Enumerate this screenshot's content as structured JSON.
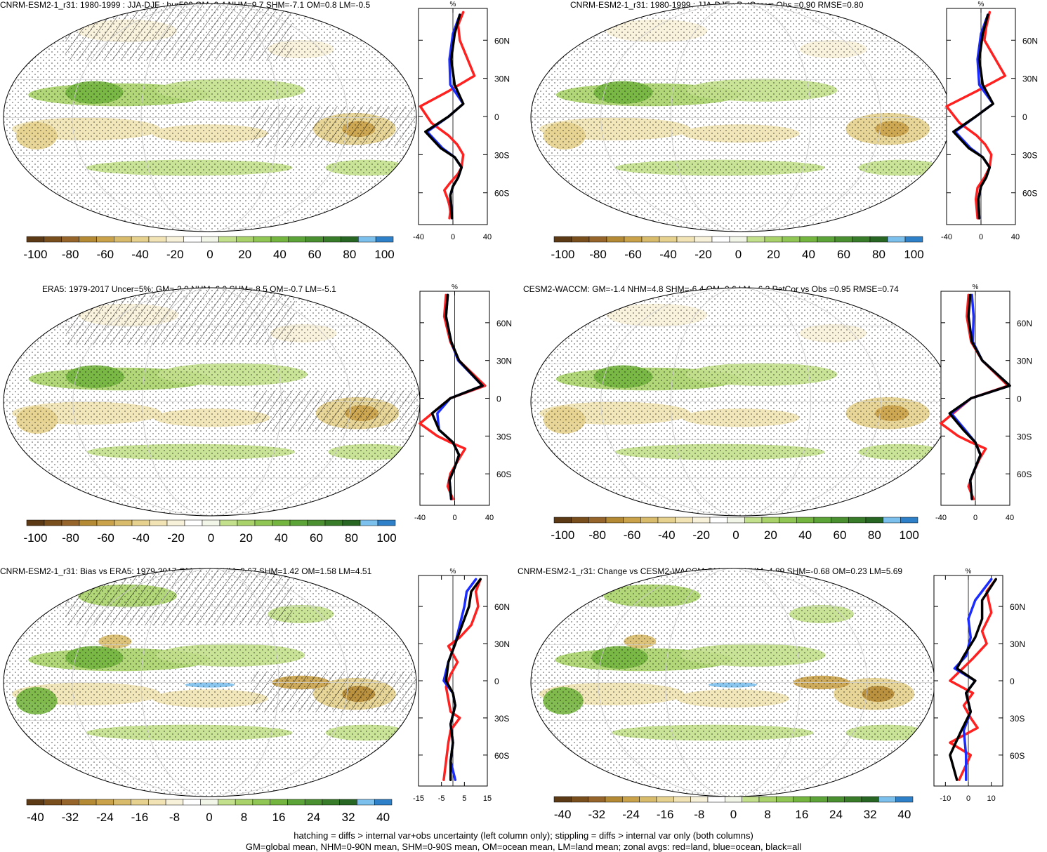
{
  "colorbar_colors": [
    "#5c3a16",
    "#7a4f1e",
    "#95652b",
    "#b58a34",
    "#caa24a",
    "#d9bb6c",
    "#e6d18e",
    "#f1e3b4",
    "#f8f1d9",
    "#ffffff",
    "#f2f6e8",
    "#c3e08c",
    "#a9d36a",
    "#8fc654",
    "#74b540",
    "#5da438",
    "#4a8f30",
    "#387b28",
    "#276723",
    "#7cc1ee",
    "#2e80c8"
  ],
  "line_colors": {
    "land": "#ff2020",
    "ocean": "#1a2cff",
    "all": "#000000"
  },
  "lat_labels": [
    "60N",
    "30N",
    "0",
    "30S",
    "60S"
  ],
  "lat_values": [
    60,
    30,
    0,
    -30,
    -60
  ],
  "panels": [
    {
      "title": "CNRM-ESM2-1_r31: 1980-1999 : JJA-DJF : hur500 GM=0.4 NHM=9.7 SHM=-7.1 OM=0.8 LM=-0.5",
      "colorbar_labels": [
        "-100",
        "-80",
        "-60",
        "-40",
        "-20",
        "0",
        "20",
        "40",
        "60",
        "80",
        "100"
      ],
      "unit": "%",
      "xticks": [
        "-40",
        "0",
        "40"
      ],
      "xlim": [
        -40,
        40
      ],
      "hatched": true
    },
    {
      "title": "CNRM-ESM2-1_r31: 1980-1999 : JJA-DJF : PatCor vs Obs =0.90 RMSE=0.80",
      "colorbar_labels": [
        "-100",
        "-80",
        "-60",
        "-40",
        "-20",
        "0",
        "20",
        "40",
        "60",
        "80",
        "100"
      ],
      "unit": "%",
      "xticks": [
        "-40",
        "0",
        "40"
      ],
      "xlim": [
        -40,
        40
      ],
      "hatched": false
    },
    {
      "title": "ERA5: 1979-2017 Uncer=5%: GM=-2.0 NHM=6.0 SHM=-8.5 OM=-0.7 LM=-5.1",
      "colorbar_labels": [
        "-100",
        "-80",
        "-60",
        "-40",
        "-20",
        "0",
        "20",
        "40",
        "60",
        "80",
        "100"
      ],
      "unit": "%",
      "xticks": [
        "-40",
        "0",
        "40"
      ],
      "xlim": [
        -40,
        40
      ],
      "hatched": true
    },
    {
      "title": "CESM2-WACCM: GM=-1.4 NHM=4.8 SHM=-6.4 OM=0.6 LM=-6.2 PatCor vs Obs =0.95 RMSE=0.74",
      "colorbar_labels": [
        "-100",
        "-80",
        "-60",
        "-40",
        "-20",
        "0",
        "20",
        "40",
        "60",
        "80",
        "100"
      ],
      "unit": "%",
      "xticks": [
        "-40",
        "0",
        "40"
      ],
      "xlim": [
        -40,
        40
      ],
      "hatched": false
    },
    {
      "title": "CNRM-ESM2-1_r31: Bias vs ERA5: 1979-2017 GM=2.43 NHM=3.67 SHM=1.42 OM=1.58 LM=4.51",
      "colorbar_labels": [
        "-40",
        "-32",
        "-24",
        "-16",
        "-8",
        "0",
        "8",
        "16",
        "24",
        "32",
        "40"
      ],
      "unit": "%",
      "xticks": [
        "-15",
        "-5",
        "5",
        "15"
      ],
      "xlim": [
        -15,
        15
      ],
      "hatched": true
    },
    {
      "title": "CNRM-ESM2-1_r31: Change vs CESM2-WACCM GM=1.81 NHM=4.89 SHM=-0.68 OM=0.23 LM=5.69",
      "colorbar_labels": [
        "-40",
        "-32",
        "-24",
        "-16",
        "-8",
        "0",
        "8",
        "16",
        "24",
        "32",
        "40"
      ],
      "unit": "%",
      "xticks": [
        "-10",
        "0",
        "10"
      ],
      "xlim": [
        -15,
        15
      ],
      "hatched": false
    }
  ],
  "footer": [
    "hatching = diffs > internal var+obs uncertainty (left column only); stippling = diffs > internal var only (both columns)",
    "GM=global mean, NHM=0-90N mean, SHM=0-90S mean, OM=ocean mean, LM=land mean; zonal avgs: red=land, blue=ocean, black=all"
  ],
  "chart_data": [
    {
      "type": "line",
      "title": "CNRM-ESM2-1_r31: 1980-1999 : JJA-DJF : hur500 GM=0.4 NHM=9.7 SHM=-7.1 OM=0.8 LM=-0.5",
      "xlabel": "%",
      "xlim": [
        -40,
        40
      ],
      "ylim": [
        -85,
        85
      ],
      "series": [
        {
          "name": "land",
          "x": [
            12,
            6,
            8,
            25,
            -5,
            -38,
            -25,
            -5,
            5,
            12,
            10,
            6,
            -3,
            -10,
            -6,
            -4,
            -3,
            -4
          ],
          "y": [
            82,
            72,
            60,
            32,
            20,
            8,
            -5,
            -15,
            -22,
            -30,
            -40,
            -45,
            -52,
            -58,
            -65,
            -70,
            -75,
            -80
          ]
        },
        {
          "name": "ocean",
          "x": [
            8,
            0,
            -4,
            -3,
            12,
            -5,
            -30,
            -12,
            2,
            10,
            6,
            0,
            -3,
            -2,
            -1
          ],
          "y": [
            80,
            65,
            45,
            25,
            10,
            0,
            -12,
            -25,
            -32,
            -40,
            -48,
            -55,
            -62,
            -70,
            -80
          ]
        },
        {
          "name": "all",
          "x": [
            8,
            2,
            -2,
            2,
            12,
            -5,
            -32,
            -14,
            2,
            10,
            6,
            0,
            -3,
            -2,
            -1
          ],
          "y": [
            80,
            65,
            45,
            25,
            10,
            0,
            -12,
            -25,
            -32,
            -40,
            -48,
            -55,
            -62,
            -70,
            -80
          ]
        }
      ]
    },
    {
      "type": "line",
      "title": "CNRM-ESM2-1_r31: 1980-1999 : JJA-DJF : PatCor vs Obs =0.90 RMSE=0.80",
      "xlabel": "%",
      "xlim": [
        -40,
        40
      ],
      "ylim": [
        -85,
        85
      ],
      "series": [
        {
          "name": "land",
          "x": [
            10,
            6,
            4,
            28,
            -5,
            -40,
            -25,
            -5,
            5,
            12,
            10,
            4,
            -4,
            -6,
            -4
          ],
          "y": [
            82,
            70,
            60,
            32,
            20,
            8,
            -5,
            -15,
            -22,
            -30,
            -40,
            -48,
            -56,
            -65,
            -80
          ]
        },
        {
          "name": "ocean",
          "x": [
            8,
            0,
            -4,
            -2,
            14,
            -6,
            -30,
            -12,
            2,
            10,
            6,
            0,
            -3,
            -2
          ],
          "y": [
            80,
            65,
            45,
            25,
            10,
            0,
            -12,
            -25,
            -32,
            -40,
            -48,
            -55,
            -65,
            -80
          ]
        },
        {
          "name": "all",
          "x": [
            8,
            2,
            -2,
            2,
            14,
            -6,
            -32,
            -14,
            2,
            10,
            6,
            0,
            -3,
            -2
          ],
          "y": [
            80,
            65,
            45,
            25,
            10,
            0,
            -12,
            -25,
            -32,
            -40,
            -48,
            -55,
            -65,
            -80
          ]
        }
      ]
    },
    {
      "type": "line",
      "title": "ERA5: 1979-2017 Uncer=5%: GM=-2.0 NHM=6.0 SHM=-8.5 OM=-0.7 LM=-5.1",
      "xlabel": "%",
      "xlim": [
        -40,
        40
      ],
      "ylim": [
        -85,
        85
      ],
      "series": [
        {
          "name": "land",
          "x": [
            -10,
            -12,
            -5,
            5,
            35,
            -5,
            -40,
            -20,
            -5,
            12,
            5,
            -5,
            -8,
            -2
          ],
          "y": [
            82,
            65,
            45,
            30,
            10,
            0,
            -20,
            -30,
            -35,
            -40,
            -48,
            -60,
            -70,
            -80
          ]
        },
        {
          "name": "ocean",
          "x": [
            -8,
            -10,
            -4,
            4,
            32,
            -5,
            -20,
            -18,
            -2,
            5,
            0,
            -6,
            -4
          ],
          "y": [
            82,
            65,
            45,
            30,
            10,
            0,
            -12,
            -25,
            -35,
            -45,
            -55,
            -65,
            -80
          ]
        },
        {
          "name": "all",
          "x": [
            -8,
            -10,
            -4,
            5,
            32,
            -5,
            -26,
            -18,
            -2,
            5,
            0,
            -6,
            -4
          ],
          "y": [
            82,
            65,
            45,
            30,
            10,
            0,
            -12,
            -25,
            -35,
            -45,
            -55,
            -65,
            -80
          ]
        }
      ]
    },
    {
      "type": "line",
      "title": "CESM2-WACCM: GM=-1.4 NHM=4.8 SHM=-6.4 OM=0.6 LM=-6.2 PatCor vs Obs =0.95 RMSE=0.74",
      "xlabel": "%",
      "xlim": [
        -40,
        40
      ],
      "ylim": [
        -85,
        85
      ],
      "series": [
        {
          "name": "land",
          "x": [
            -8,
            -10,
            -5,
            8,
            38,
            -5,
            -40,
            -20,
            -5,
            12,
            5,
            -3,
            -8,
            -2
          ],
          "y": [
            82,
            65,
            45,
            30,
            10,
            0,
            -20,
            -30,
            -35,
            -40,
            -48,
            -60,
            -70,
            -80
          ]
        },
        {
          "name": "ocean",
          "x": [
            -4,
            -2,
            -3,
            8,
            40,
            -5,
            -28,
            -12,
            0,
            6,
            0,
            -6,
            -4
          ],
          "y": [
            82,
            65,
            45,
            30,
            10,
            0,
            -12,
            -25,
            -35,
            -45,
            -55,
            -65,
            -80
          ]
        },
        {
          "name": "all",
          "x": [
            -6,
            -8,
            -4,
            8,
            40,
            -5,
            -30,
            -14,
            0,
            6,
            0,
            -6,
            -4
          ],
          "y": [
            82,
            65,
            45,
            30,
            10,
            0,
            -12,
            -25,
            -35,
            -45,
            -55,
            -65,
            -80
          ]
        }
      ]
    },
    {
      "type": "line",
      "title": "CNRM-ESM2-1_r31: Bias vs ERA5: 1979-2017 GM=2.43 NHM=3.67 SHM=1.42 OM=1.58 LM=4.51",
      "xlabel": "%",
      "xlim": [
        -15,
        15
      ],
      "ylim": [
        -85,
        85
      ],
      "series": [
        {
          "name": "land",
          "x": [
            12,
            10,
            11,
            8,
            3,
            -2,
            2,
            -1,
            -3,
            -1,
            3,
            -1,
            -2,
            -3,
            -4
          ],
          "y": [
            82,
            72,
            60,
            45,
            35,
            28,
            15,
            5,
            -5,
            -25,
            -30,
            -40,
            -50,
            -65,
            -80
          ]
        },
        {
          "name": "ocean",
          "x": [
            10,
            6,
            5,
            3,
            1,
            -2,
            -4,
            0,
            1,
            -1,
            0,
            -1,
            1
          ],
          "y": [
            82,
            72,
            60,
            45,
            30,
            15,
            0,
            -10,
            -20,
            -35,
            -50,
            -65,
            -80
          ]
        },
        {
          "name": "all",
          "x": [
            12,
            8,
            7,
            4,
            1,
            -2,
            -3,
            0,
            1,
            -1,
            0,
            -1,
            -1
          ],
          "y": [
            82,
            72,
            60,
            45,
            30,
            15,
            0,
            -10,
            -20,
            -35,
            -50,
            -65,
            -80
          ]
        }
      ]
    },
    {
      "type": "line",
      "title": "CNRM-ESM2-1_r31: Change vs CESM2-WACCM GM=1.81 NHM=4.89 SHM=-0.68 OM=0.23 LM=5.69",
      "xlabel": "%",
      "xlim": [
        -15,
        15
      ],
      "ylim": [
        -85,
        85
      ],
      "series": [
        {
          "name": "land",
          "x": [
            12,
            8,
            10,
            6,
            8,
            2,
            -8,
            2,
            -2,
            1,
            4,
            -3,
            -8,
            1,
            -4
          ],
          "y": [
            82,
            72,
            55,
            40,
            30,
            18,
            0,
            -10,
            -20,
            -30,
            -38,
            -45,
            -50,
            -60,
            -80
          ]
        },
        {
          "name": "ocean",
          "x": [
            10,
            3,
            0,
            1,
            -1,
            -6,
            3,
            -1,
            1,
            -2,
            -1,
            -1
          ],
          "y": [
            82,
            65,
            50,
            35,
            20,
            10,
            0,
            -10,
            -25,
            -40,
            -60,
            -80
          ]
        },
        {
          "name": "all",
          "x": [
            12,
            6,
            6,
            3,
            -2,
            -5,
            3,
            -1,
            1,
            -3,
            -8,
            -5
          ],
          "y": [
            82,
            65,
            50,
            35,
            20,
            10,
            0,
            -10,
            -25,
            -40,
            -60,
            -80
          ]
        }
      ]
    }
  ]
}
